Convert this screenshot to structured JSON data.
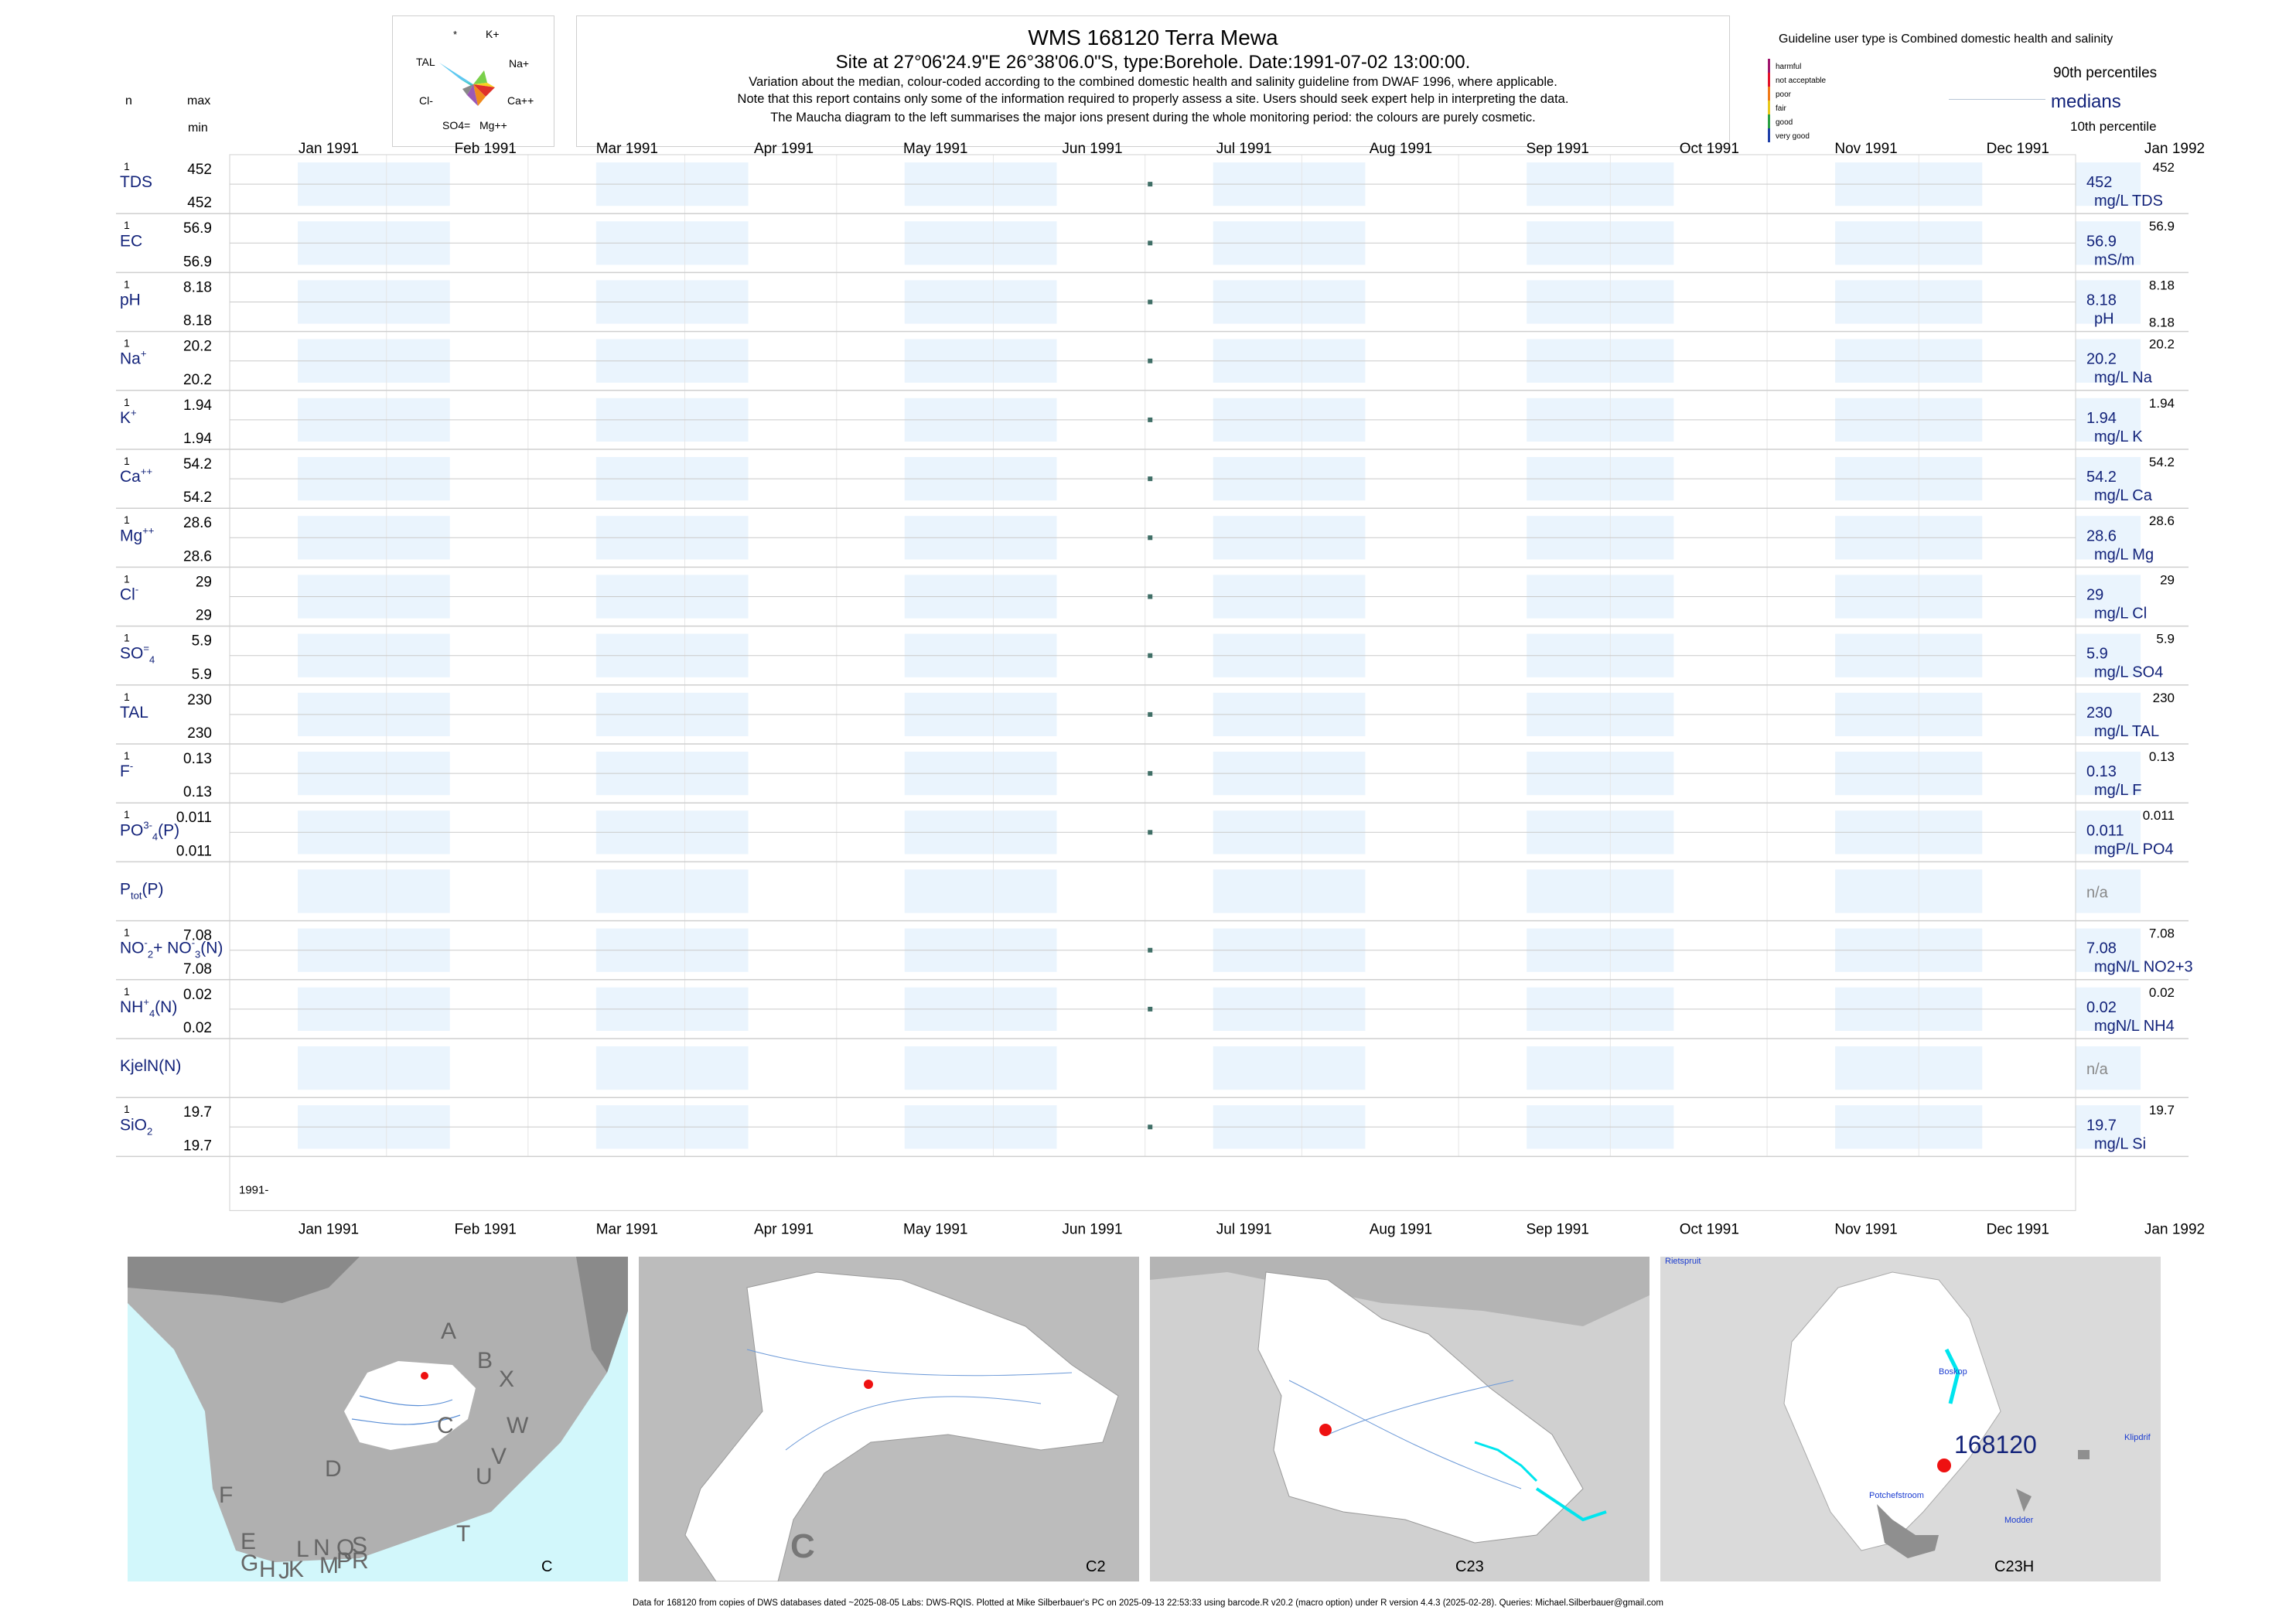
{
  "header": {
    "title": "WMS 168120  Terra Mewa",
    "subtitle": "Site at 27°06'24.9\"E 26°38'06.0\"S, type:Borehole. Date:1991-07-02 13:00:00.",
    "note1": "Variation about the median,  colour-coded according to the combined domestic health and salinity guideline from DWAF 1996, where applicable.",
    "note2": "Note that this report contains only some of the information required to properly assess a site. Users should seek expert help in interpreting the data.",
    "note3": "The Maucha diagram to the left summarises the major ions present during the whole monitoring period: the colours are purely cosmetic."
  },
  "col_headers": {
    "n": "n",
    "max": "max",
    "min": "min"
  },
  "maucha": {
    "labels": [
      "*",
      "K+",
      "TAL",
      "Na+",
      "Cl-",
      "Ca++",
      "SO4=",
      "Mg++"
    ],
    "colors": [
      "#5ec8f0",
      "#3fbf9f",
      "#7ad04a",
      "#f7d21f",
      "#f08a1c",
      "#e0302a",
      "#9b59b6",
      "#888888"
    ]
  },
  "legend": {
    "guideline_title": "Guideline user type is Combined domestic health and salinity",
    "classes": [
      "harmful",
      "not acceptable",
      "poor",
      "fair",
      "good",
      "very good"
    ],
    "class_colors": [
      "#a0166e",
      "#e3122a",
      "#f07a18",
      "#e8c81c",
      "#2aa043",
      "#1f3fa8"
    ],
    "p90": "90th percentiles",
    "medians": "medians",
    "p10": "10th percentile"
  },
  "time_axis": {
    "months": [
      "Jan 1991",
      "Feb 1991",
      "Mar 1991",
      "Apr 1991",
      "May 1991",
      "Jun 1991",
      "Jul 1991",
      "Aug 1991",
      "Sep 1991",
      "Oct 1991",
      "Nov 1991",
      "Dec 1991",
      "Jan 1992"
    ],
    "year_label": "1991-"
  },
  "chart_data": {
    "type": "scatter",
    "x_range": [
      "1991-01-01",
      "1992-01-01"
    ],
    "sample_date": "1991-07-02",
    "series": [
      {
        "name": "TDS",
        "sup": "",
        "sub": "",
        "n": "1",
        "max": "452",
        "min": "452",
        "median": "452",
        "unit": "mg/L TDS",
        "p90": "452",
        "p10": "",
        "value": 452
      },
      {
        "name": "EC",
        "sup": "",
        "sub": "",
        "n": "1",
        "max": "56.9",
        "min": "56.9",
        "median": "56.9",
        "unit": "mS/m",
        "p90": "56.9",
        "p10": "",
        "value": 56.9
      },
      {
        "name": "pH",
        "sup": "",
        "sub": "",
        "n": "1",
        "max": "8.18",
        "min": "8.18",
        "median": "8.18",
        "unit": "pH",
        "p90": "8.18",
        "p10": "8.18",
        "value": 8.18
      },
      {
        "name": "Na",
        "sup": "+",
        "sub": "",
        "n": "1",
        "max": "20.2",
        "min": "20.2",
        "median": "20.2",
        "unit": "mg/L Na",
        "p90": "20.2",
        "p10": "",
        "value": 20.2
      },
      {
        "name": "K",
        "sup": "+",
        "sub": "",
        "n": "1",
        "max": "1.94",
        "min": "1.94",
        "median": "1.94",
        "unit": "mg/L K",
        "p90": "1.94",
        "p10": "",
        "value": 1.94
      },
      {
        "name": "Ca",
        "sup": "++",
        "sub": "",
        "n": "1",
        "max": "54.2",
        "min": "54.2",
        "median": "54.2",
        "unit": "mg/L Ca",
        "p90": "54.2",
        "p10": "",
        "value": 54.2
      },
      {
        "name": "Mg",
        "sup": "++",
        "sub": "",
        "n": "1",
        "max": "28.6",
        "min": "28.6",
        "median": "28.6",
        "unit": "mg/L Mg",
        "p90": "28.6",
        "p10": "",
        "value": 28.6
      },
      {
        "name": "Cl",
        "sup": "-",
        "sub": "",
        "n": "1",
        "max": "29",
        "min": "29",
        "median": "29",
        "unit": "mg/L Cl",
        "p90": "29",
        "p10": "",
        "value": 29
      },
      {
        "name": "SO",
        "sup": "=",
        "sub": "4",
        "n": "1",
        "max": "5.9",
        "min": "5.9",
        "median": "5.9",
        "unit": "mg/L SO4",
        "p90": "5.9",
        "p10": "",
        "value": 5.9
      },
      {
        "name": "TAL",
        "sup": "",
        "sub": "",
        "n": "1",
        "max": "230",
        "min": "230",
        "median": "230",
        "unit": "mg/L TAL",
        "p90": "230",
        "p10": "",
        "value": 230
      },
      {
        "name": "F",
        "sup": "-",
        "sub": "",
        "n": "1",
        "max": "0.13",
        "min": "0.13",
        "median": "0.13",
        "unit": "mg/L F",
        "p90": "0.13",
        "p10": "",
        "value": 0.13
      },
      {
        "name": "PO",
        "sup": "3-",
        "sub": "4",
        "suffix": "(P)",
        "n": "1",
        "max": "0.011",
        "min": "0.011",
        "median": "0.011",
        "unit": "mgP/L PO4",
        "p90": "0.011",
        "p10": "",
        "value": 0.011
      },
      {
        "name": "P",
        "sup": "",
        "sub": "tot",
        "suffix": "(P)",
        "n": "",
        "max": "",
        "min": "",
        "median": "n/a",
        "unit": "",
        "p90": "",
        "p10": "",
        "value": null
      },
      {
        "name": "NO",
        "sup": "-",
        "sub": "2",
        "extra": "+ NO",
        "extra_sup": "-",
        "extra_sub": "3",
        "suffix": "(N)",
        "n": "1",
        "max": "7.08",
        "min": "7.08",
        "median": "7.08",
        "unit": "mgN/L NO2+3",
        "p90": "7.08",
        "p10": "",
        "value": 7.08
      },
      {
        "name": "NH",
        "sup": "+",
        "sub": "4",
        "suffix": "(N)",
        "n": "1",
        "max": "0.02",
        "min": "0.02",
        "median": "0.02",
        "unit": "mgN/L NH4",
        "p90": "0.02",
        "p10": "",
        "value": 0.02
      },
      {
        "name": "KjelN(N)",
        "sup": "",
        "sub": "",
        "n": "",
        "max": "",
        "min": "",
        "median": "n/a",
        "unit": "",
        "p90": "",
        "p10": "",
        "value": null
      },
      {
        "name": "SiO",
        "sup": "",
        "sub": "2",
        "n": "1",
        "max": "19.7",
        "min": "19.7",
        "median": "19.7",
        "unit": "mg/L Si",
        "p90": "19.7",
        "p10": "",
        "value": 19.7
      }
    ]
  },
  "maps": [
    {
      "caption": "C",
      "letters": [
        "A",
        "B",
        "X",
        "W",
        "C",
        "V",
        "U",
        "D",
        "T",
        "F",
        "E",
        "G",
        "H",
        "J",
        "L",
        "K",
        "N",
        "M",
        "Q",
        "P",
        "S",
        "R"
      ]
    },
    {
      "caption": "C2",
      "big_letter": "C"
    },
    {
      "caption": "C23"
    },
    {
      "caption": "C23H",
      "site": "168120",
      "places": [
        "Rietspruit",
        "Boskop",
        "Klipdrif",
        "Potchefstroom",
        "Modder"
      ]
    }
  ],
  "footer": "Data for 168120 from copies of DWS databases dated ~2025-08-05 Labs: DWS-RQIS. Plotted at Mike Silberbauer's PC on 2025-09-13 22:53:33 using barcode.R v20.2 (macro option) under R version 4.4.3 (2025-02-28). Queries: Michael.Silberbauer@gmail.com"
}
